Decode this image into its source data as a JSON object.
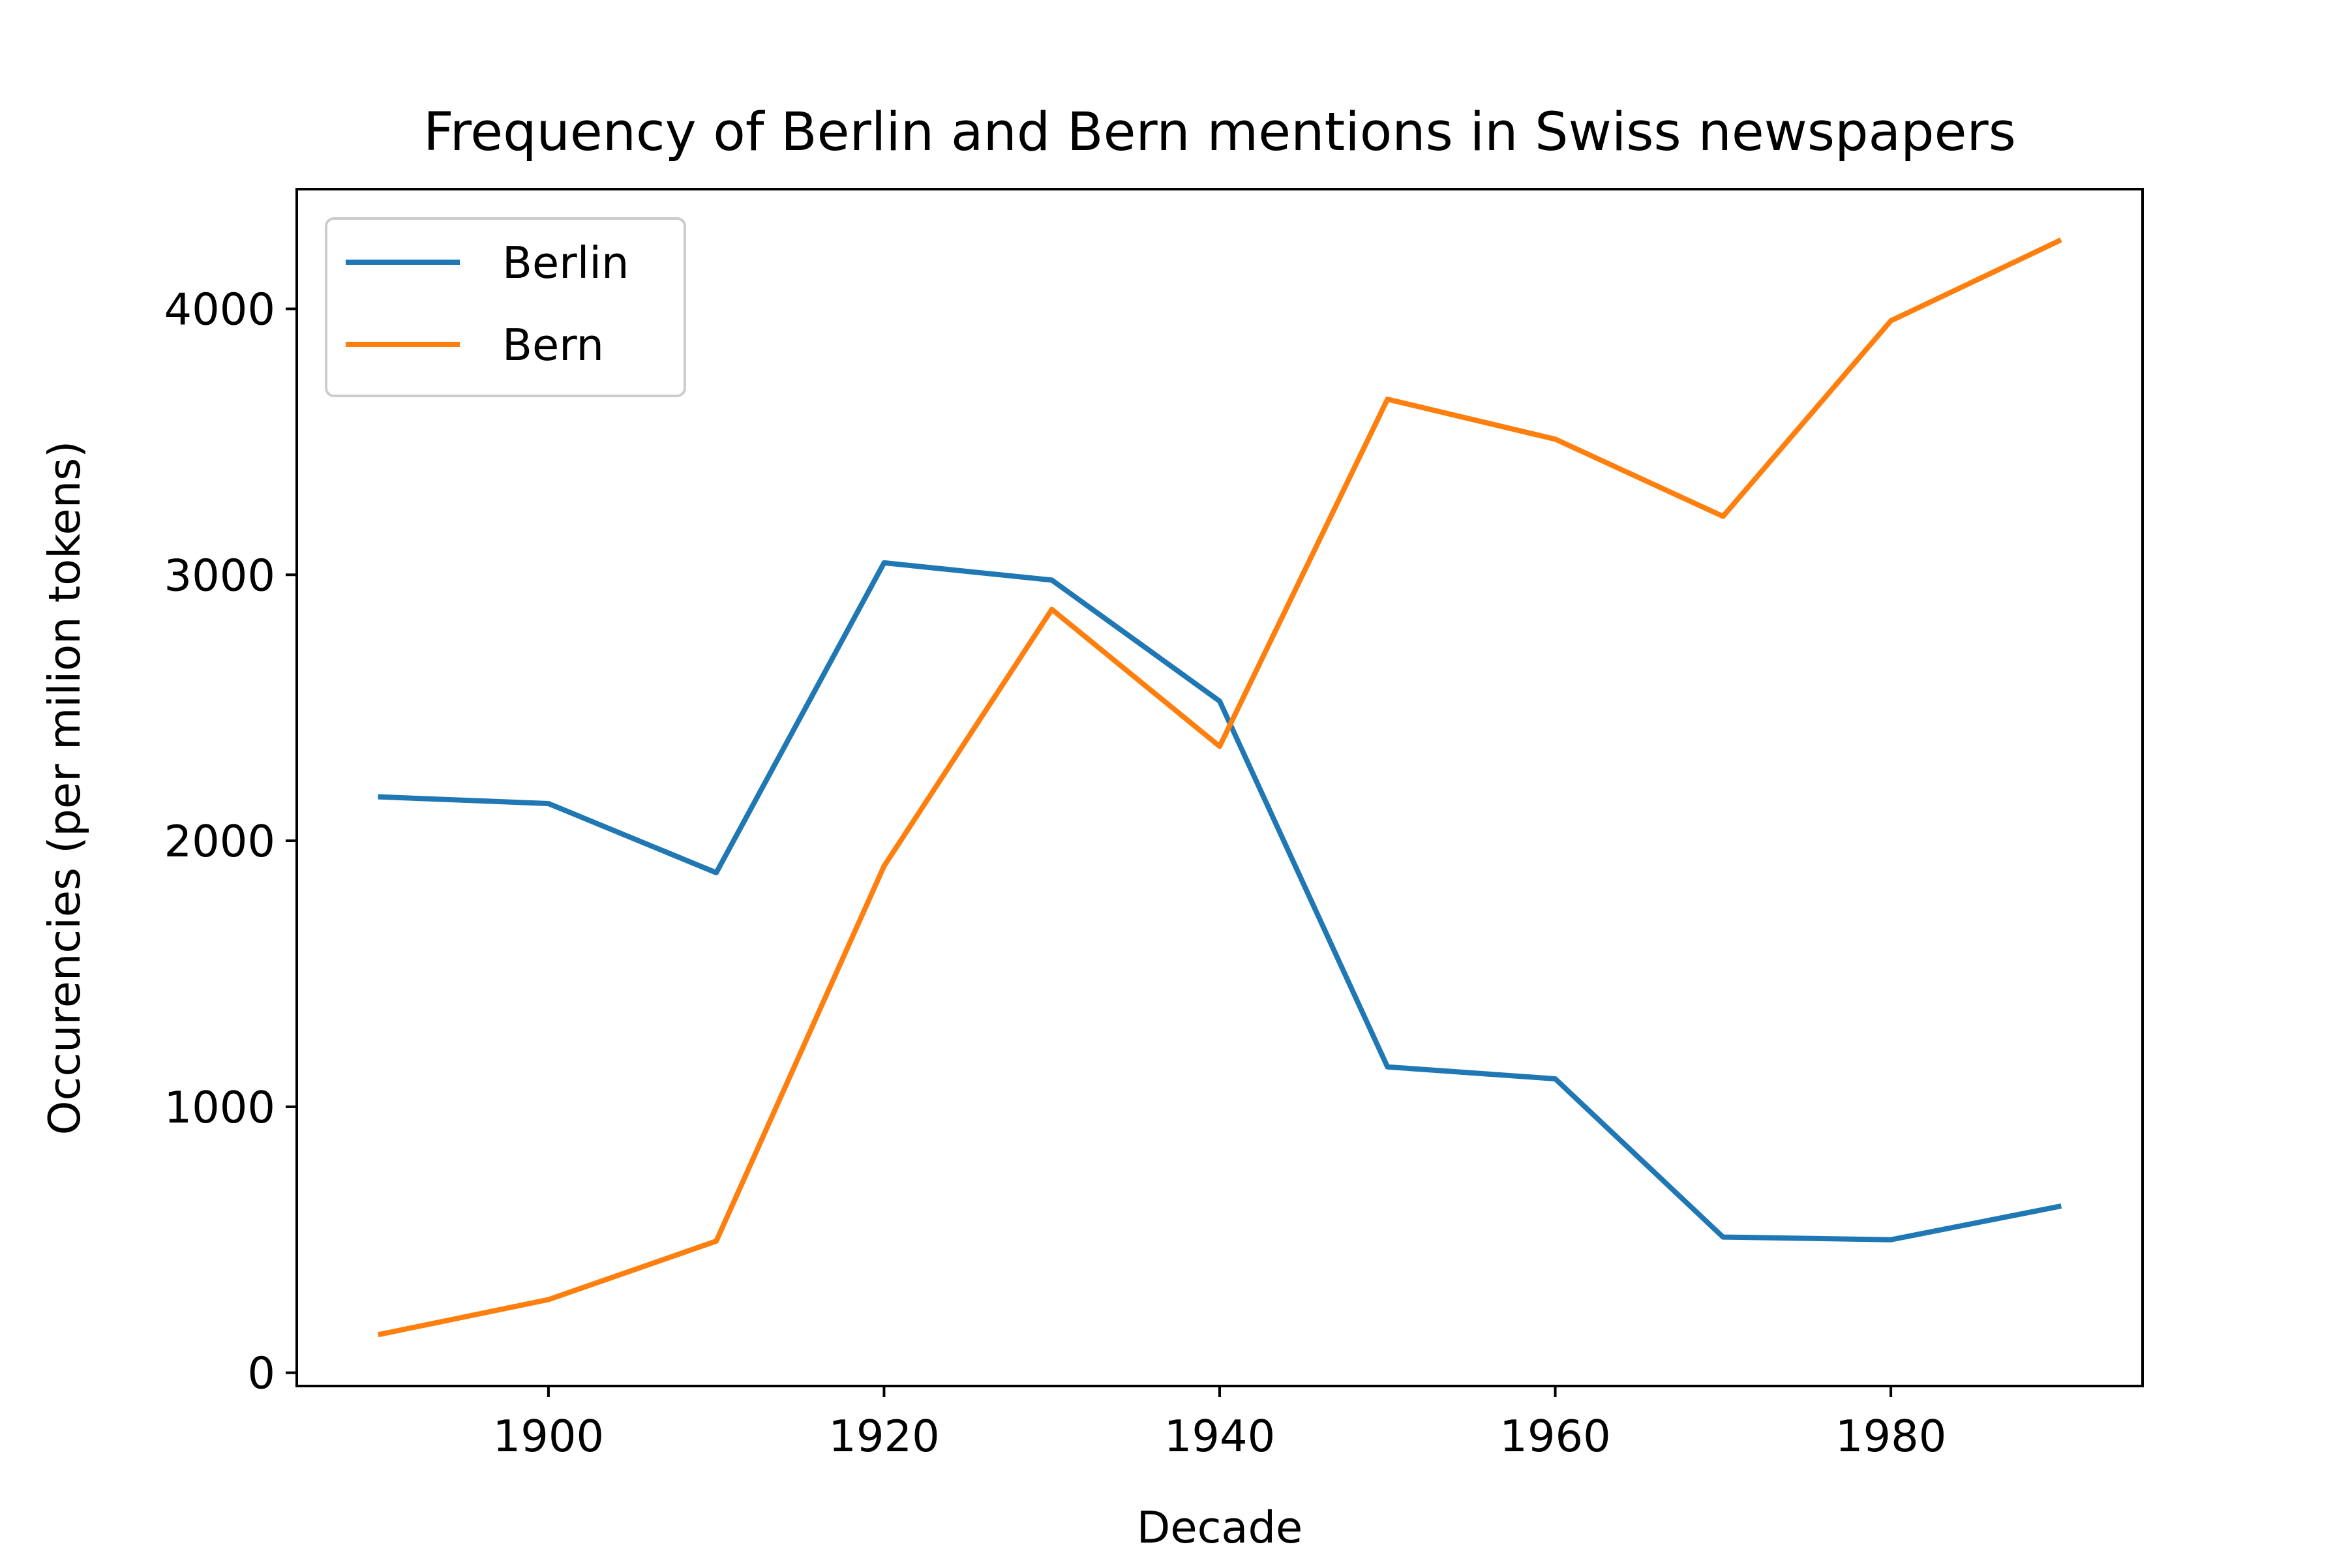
{
  "chart_data": {
    "type": "line",
    "title": "Frequency of Berlin and Bern mentions in Swiss newspapers",
    "xlabel": "Decade",
    "ylabel": "Occurencies (per milion tokens)",
    "x": [
      1890,
      1900,
      1910,
      1920,
      1930,
      1940,
      1950,
      1960,
      1970,
      1980,
      1990
    ],
    "xlim": [
      1885,
      1995
    ],
    "ylim": [
      -50,
      4450
    ],
    "xticks": [
      1900,
      1920,
      1940,
      1960,
      1980
    ],
    "yticks": [
      0,
      1000,
      2000,
      3000,
      4000
    ],
    "grid": false,
    "legend_position": "top-left",
    "series": [
      {
        "name": "Berlin",
        "color": "#1f77b4",
        "values": [
          2165,
          2140,
          1880,
          3045,
          2980,
          2525,
          1150,
          1105,
          510,
          500,
          625
        ]
      },
      {
        "name": "Bern",
        "color": "#ff7f0e",
        "values": [
          145,
          275,
          495,
          1905,
          2870,
          2355,
          3660,
          3510,
          3220,
          3955,
          4255
        ]
      }
    ]
  }
}
